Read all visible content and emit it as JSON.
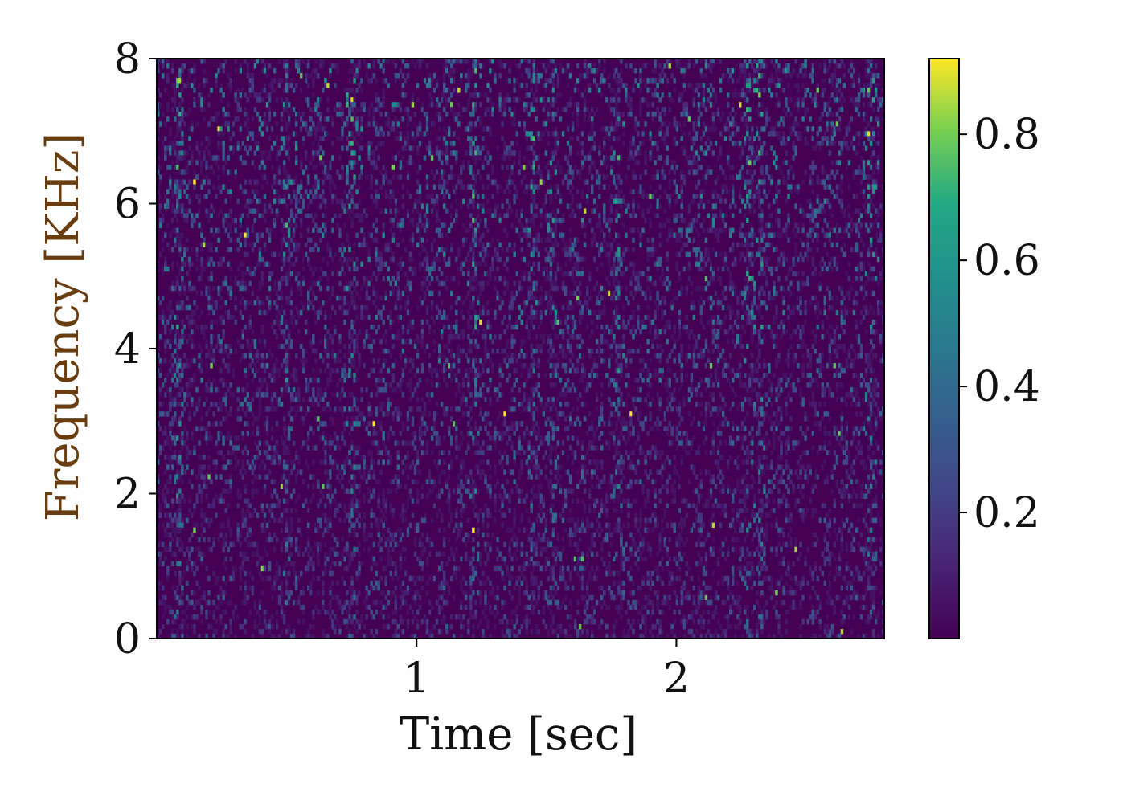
{
  "chart_data": {
    "type": "heatmap",
    "xlabel": "Time [sec]",
    "ylabel": "Frequency [KHz]",
    "xlim": [
      0,
      2.8
    ],
    "ylim": [
      0,
      8
    ],
    "xticks": [
      1,
      2
    ],
    "xtick_labels": [
      "1",
      "2"
    ],
    "yticks": [
      0,
      2,
      4,
      6,
      8
    ],
    "ytick_labels": [
      "0",
      "2",
      "4",
      "6",
      "8"
    ],
    "colormap": "viridis",
    "colorbar": {
      "range": [
        0,
        0.92
      ],
      "ticks": [
        0.2,
        0.4,
        0.6,
        0.8
      ],
      "tick_labels": [
        "0.2",
        "0.4",
        "0.6",
        "0.8"
      ]
    },
    "grid": false,
    "bright_time_bands_sec": [
      0.08,
      0.5,
      0.75,
      1.22,
      1.45,
      1.52,
      1.78,
      2.28,
      2.32,
      2.75
    ],
    "background_value": 0.02
  }
}
